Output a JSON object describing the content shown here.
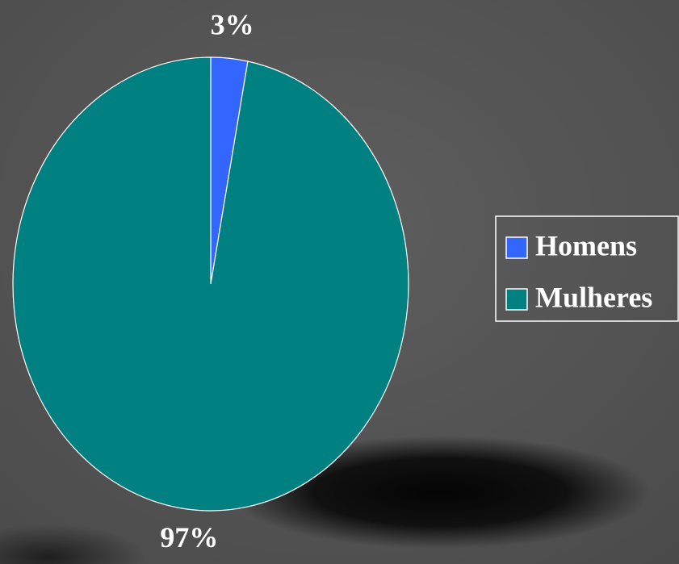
{
  "chart_data": {
    "type": "pie",
    "categories": [
      "Homens",
      "Mulheres"
    ],
    "values": [
      3,
      97
    ],
    "value_labels": [
      "3%",
      "97%"
    ],
    "colors": [
      "#3366ff",
      "#008080"
    ],
    "legend": "right"
  }
}
